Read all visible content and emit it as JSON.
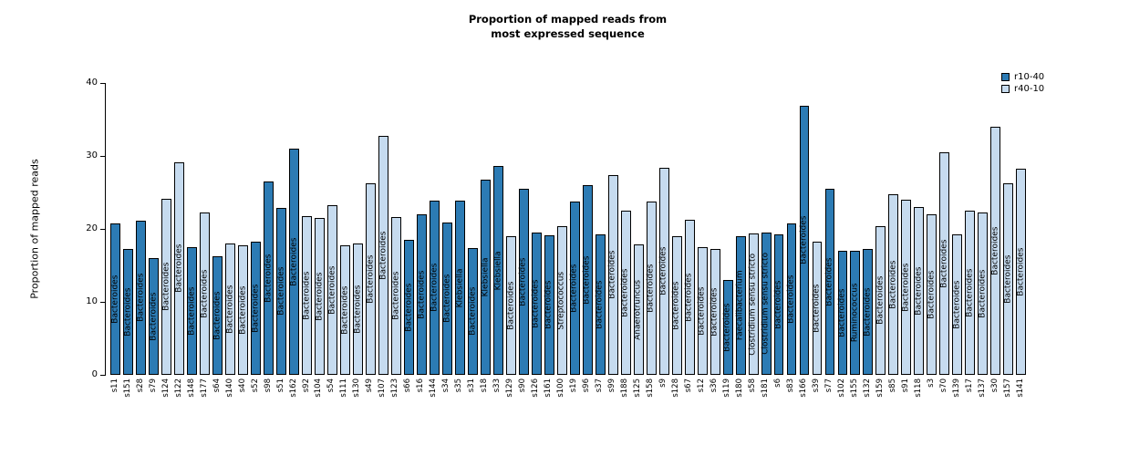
{
  "chart_data": {
    "type": "bar",
    "title_lines": [
      "Proportion of mapped reads from",
      "most expressed sequence"
    ],
    "ylabel": "Proportion of mapped reads",
    "ylim": [
      0,
      40
    ],
    "yticks": [
      0,
      10,
      20,
      30,
      40
    ],
    "grid": false,
    "legend_position": "top-right",
    "colors": {
      "r10-40": "#2c7bb4",
      "r40-10": "#c6dbef"
    },
    "legend": [
      {
        "label": "r10-40",
        "group": "r10-40"
      },
      {
        "label": "r40-10",
        "group": "r40-10"
      }
    ],
    "bars": [
      {
        "sample": "s11",
        "value": 20.7,
        "group": "r10-40",
        "taxon": "Bacteroides"
      },
      {
        "sample": "s151",
        "value": 17.2,
        "group": "r10-40",
        "taxon": "Bacteroides"
      },
      {
        "sample": "s28",
        "value": 21.1,
        "group": "r10-40",
        "taxon": "Bacteroides"
      },
      {
        "sample": "s79",
        "value": 16.0,
        "group": "r10-40",
        "taxon": "Bacteroides"
      },
      {
        "sample": "s124",
        "value": 24.1,
        "group": "r40-10",
        "taxon": "Bacteroides"
      },
      {
        "sample": "s122",
        "value": 29.1,
        "group": "r40-10",
        "taxon": "Bacteroides"
      },
      {
        "sample": "s148",
        "value": 17.5,
        "group": "r10-40",
        "taxon": "Bacteroides"
      },
      {
        "sample": "s177",
        "value": 22.2,
        "group": "r40-10",
        "taxon": "Bacteroides"
      },
      {
        "sample": "s64",
        "value": 16.3,
        "group": "r10-40",
        "taxon": "Bacteroides"
      },
      {
        "sample": "s140",
        "value": 18.0,
        "group": "r40-10",
        "taxon": "Bacteroides"
      },
      {
        "sample": "s40",
        "value": 17.7,
        "group": "r40-10",
        "taxon": "Bacteroides"
      },
      {
        "sample": "s52",
        "value": 18.3,
        "group": "r10-40",
        "taxon": "Bacteroides"
      },
      {
        "sample": "s98",
        "value": 26.5,
        "group": "r10-40",
        "taxon": "Bacteroides"
      },
      {
        "sample": "s51",
        "value": 22.9,
        "group": "r10-40",
        "taxon": "Bacteroides"
      },
      {
        "sample": "s162",
        "value": 31.0,
        "group": "r10-40",
        "taxon": "Bacteroides"
      },
      {
        "sample": "s92",
        "value": 21.8,
        "group": "r40-10",
        "taxon": "Bacteroides"
      },
      {
        "sample": "s104",
        "value": 21.5,
        "group": "r40-10",
        "taxon": "Bacteroides"
      },
      {
        "sample": "s54",
        "value": 23.2,
        "group": "r40-10",
        "taxon": "Bacteroides"
      },
      {
        "sample": "s111",
        "value": 17.8,
        "group": "r40-10",
        "taxon": "Bacteroides"
      },
      {
        "sample": "s130",
        "value": 18.0,
        "group": "r40-10",
        "taxon": "Bacteroides"
      },
      {
        "sample": "s49",
        "value": 26.2,
        "group": "r40-10",
        "taxon": "Bacteroides"
      },
      {
        "sample": "s107",
        "value": 32.8,
        "group": "r40-10",
        "taxon": "Bacteroides"
      },
      {
        "sample": "s123",
        "value": 21.6,
        "group": "r40-10",
        "taxon": "Bacteroides"
      },
      {
        "sample": "s66",
        "value": 18.5,
        "group": "r10-40",
        "taxon": "Bacteroides"
      },
      {
        "sample": "s16",
        "value": 22.0,
        "group": "r10-40",
        "taxon": "Bacteroides"
      },
      {
        "sample": "s144",
        "value": 23.9,
        "group": "r10-40",
        "taxon": "Bacteroides"
      },
      {
        "sample": "s34",
        "value": 20.9,
        "group": "r10-40",
        "taxon": "Bacteroides"
      },
      {
        "sample": "s35",
        "value": 23.9,
        "group": "r10-40",
        "taxon": "Klebsiella"
      },
      {
        "sample": "s31",
        "value": 17.4,
        "group": "r10-40",
        "taxon": "Bacteroides"
      },
      {
        "sample": "s18",
        "value": 26.7,
        "group": "r10-40",
        "taxon": "Klebsiella"
      },
      {
        "sample": "s33",
        "value": 28.6,
        "group": "r10-40",
        "taxon": "Klebsiella"
      },
      {
        "sample": "s129",
        "value": 19.0,
        "group": "r40-10",
        "taxon": "Bacteroides"
      },
      {
        "sample": "s90",
        "value": 25.5,
        "group": "r10-40",
        "taxon": "Bacteroides"
      },
      {
        "sample": "s126",
        "value": 19.5,
        "group": "r10-40",
        "taxon": "Bacteroides"
      },
      {
        "sample": "s161",
        "value": 19.1,
        "group": "r10-40",
        "taxon": "Bacteroides"
      },
      {
        "sample": "s100",
        "value": 20.4,
        "group": "r40-10",
        "taxon": "Streptococcus"
      },
      {
        "sample": "s19",
        "value": 23.8,
        "group": "r10-40",
        "taxon": "Bacteroides"
      },
      {
        "sample": "s96",
        "value": 26.0,
        "group": "r10-40",
        "taxon": "Bacteroides"
      },
      {
        "sample": "s37",
        "value": 19.3,
        "group": "r10-40",
        "taxon": "Bacteroides"
      },
      {
        "sample": "s99",
        "value": 27.4,
        "group": "r40-10",
        "taxon": "Bacteroides"
      },
      {
        "sample": "s188",
        "value": 22.5,
        "group": "r40-10",
        "taxon": "Bacteroides"
      },
      {
        "sample": "s125",
        "value": 17.9,
        "group": "r40-10",
        "taxon": "Anaerotruncus"
      },
      {
        "sample": "s158",
        "value": 23.7,
        "group": "r40-10",
        "taxon": "Bacteroides"
      },
      {
        "sample": "s9",
        "value": 28.4,
        "group": "r40-10",
        "taxon": "Bacteroides"
      },
      {
        "sample": "s128",
        "value": 19.0,
        "group": "r40-10",
        "taxon": "Bacteroides"
      },
      {
        "sample": "s67",
        "value": 21.2,
        "group": "r40-10",
        "taxon": "Bacteroides"
      },
      {
        "sample": "s12",
        "value": 17.5,
        "group": "r40-10",
        "taxon": "Bacteroides"
      },
      {
        "sample": "s36",
        "value": 17.2,
        "group": "r40-10",
        "taxon": "Bacteroides"
      },
      {
        "sample": "s119",
        "value": 13.0,
        "group": "r10-40",
        "taxon": "Bacteroides"
      },
      {
        "sample": "s180",
        "value": 19.0,
        "group": "r10-40",
        "taxon": "Faecalibacterium"
      },
      {
        "sample": "s58",
        "value": 19.4,
        "group": "r40-10",
        "taxon": "Clostridium sensu stricto"
      },
      {
        "sample": "s181",
        "value": 19.5,
        "group": "r10-40",
        "taxon": "Clostridium sensu stricto"
      },
      {
        "sample": "s6",
        "value": 19.2,
        "group": "r10-40",
        "taxon": "Bacteroides"
      },
      {
        "sample": "s83",
        "value": 20.8,
        "group": "r10-40",
        "taxon": "Bacteroides"
      },
      {
        "sample": "s166",
        "value": 36.9,
        "group": "r10-40",
        "taxon": "Bacteroides"
      },
      {
        "sample": "s39",
        "value": 18.2,
        "group": "r40-10",
        "taxon": "Bacteroides"
      },
      {
        "sample": "s77",
        "value": 25.5,
        "group": "r10-40",
        "taxon": "Bacteroides"
      },
      {
        "sample": "s102",
        "value": 17.0,
        "group": "r10-40",
        "taxon": "Bacteroides"
      },
      {
        "sample": "s155",
        "value": 17.0,
        "group": "r10-40",
        "taxon": "Ruminococcus"
      },
      {
        "sample": "s132",
        "value": 17.2,
        "group": "r10-40",
        "taxon": "Bacteroides"
      },
      {
        "sample": "s159",
        "value": 20.4,
        "group": "r40-10",
        "taxon": "Bacteroides"
      },
      {
        "sample": "s85",
        "value": 24.8,
        "group": "r40-10",
        "taxon": "Bacteroides"
      },
      {
        "sample": "s91",
        "value": 24.0,
        "group": "r40-10",
        "taxon": "Bacteroides"
      },
      {
        "sample": "s118",
        "value": 23.0,
        "group": "r40-10",
        "taxon": "Bacteroides"
      },
      {
        "sample": "s3",
        "value": 22.0,
        "group": "r40-10",
        "taxon": "Bacteroides"
      },
      {
        "sample": "s70",
        "value": 30.5,
        "group": "r40-10",
        "taxon": "Bacteroides"
      },
      {
        "sample": "s139",
        "value": 19.2,
        "group": "r40-10",
        "taxon": "Bacteroides"
      },
      {
        "sample": "s17",
        "value": 22.5,
        "group": "r40-10",
        "taxon": "Bacteroides"
      },
      {
        "sample": "s137",
        "value": 22.3,
        "group": "r40-10",
        "taxon": "Bacteroides"
      },
      {
        "sample": "s30",
        "value": 34.0,
        "group": "r40-10",
        "taxon": "Bacteroides"
      },
      {
        "sample": "s157",
        "value": 26.3,
        "group": "r40-10",
        "taxon": "Bacteroides"
      },
      {
        "sample": "s141",
        "value": 28.3,
        "group": "r40-10",
        "taxon": "Bacteroides"
      }
    ]
  }
}
